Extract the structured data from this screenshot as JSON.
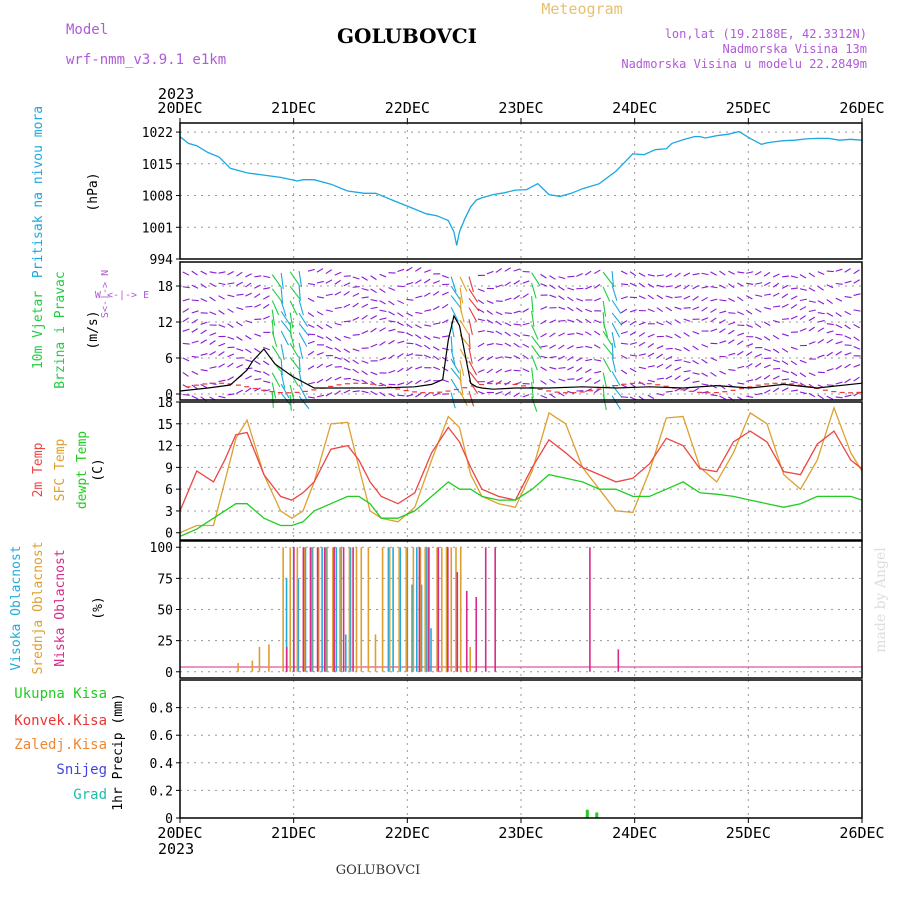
{
  "header": {
    "model_label": "Model",
    "model_name": "wrf-nmm_v3.9.1 e1km",
    "station_title": "GOLUBOVCI",
    "meteogram_label": "Meteogram",
    "lonlat": "lon,lat (19.2188E, 42.3312N)",
    "altitude": "Nadmorska Visina 13m",
    "model_altitude": "Nadmorska Visina u modelu 22.2849m"
  },
  "footer": {
    "station": "GOLUBOVCI",
    "credit": "made by Angel"
  },
  "time_axis": {
    "year": "2023",
    "labels": [
      "20DEC",
      "21DEC",
      "22DEC",
      "23DEC",
      "24DEC",
      "25DEC",
      "26DEC"
    ]
  },
  "colors": {
    "pressure": "#1ba8e0",
    "wind_main": "#8a1bd6",
    "wind_alt": "#1ba8e0",
    "wind_green": "#22cc44",
    "wind_orange": "#e0a020",
    "wind_red": "#e83a3a",
    "temp_2m": "#ee4444",
    "temp_sfc": "#dda030",
    "dewpt": "#22cc22",
    "cloud_high": "#22aadd",
    "cloud_mid": "#dda030",
    "cloud_low": "#d82a8a",
    "precip_total": "#22cc22",
    "precip_conv": "#ee3333",
    "precip_frozen": "#ee8833",
    "snow": "#4444dd",
    "hail": "#22bbaa",
    "side_label_purple": "#b05ad8",
    "credit": "#dddddd"
  },
  "chart_data": [
    {
      "type": "line",
      "panel": "pressure",
      "ylabel": [
        "Pritisak na nivou mora",
        "(hPa)"
      ],
      "ylim": [
        994,
        1024
      ],
      "yticks": [
        "994",
        "1001",
        "1008",
        "1015",
        "1022"
      ],
      "x_hours": [
        0,
        3,
        6,
        10,
        14,
        18,
        24,
        30,
        36,
        40,
        42,
        44,
        48,
        54,
        60,
        66,
        70,
        74,
        76,
        80,
        84,
        88,
        92,
        94,
        96,
        98,
        99,
        100,
        102,
        104,
        106,
        108,
        112,
        116,
        120,
        124,
        128,
        132,
        136,
        140,
        144,
        150,
        156,
        160,
        162,
        166,
        170,
        174,
        176,
        180,
        184,
        186,
        188,
        192,
        196,
        200,
        204,
        208,
        210,
        212,
        216,
        220,
        224,
        228,
        232,
        236,
        240,
        244
      ],
      "values": [
        1021,
        1019.5,
        1019,
        1017.5,
        1016.5,
        1014,
        1013,
        1012.5,
        1012,
        1011.5,
        1011.2,
        1011.5,
        1011.5,
        1010.5,
        1009,
        1008.5,
        1008.5,
        1007.5,
        1007,
        1006,
        1005,
        1004,
        1003.5,
        1003,
        1002.5,
        1000,
        997,
        1000,
        1003,
        1005.5,
        1007,
        1007.5,
        1008.2,
        1008.6,
        1009.2,
        1009.3,
        1010.6,
        1008.2,
        1007.8,
        1008.5,
        1009.5,
        1010.6,
        1013.4,
        1015.9,
        1017.2,
        1017,
        1018.1,
        1018.3,
        1019.5,
        1020.3,
        1021,
        1021,
        1020.7,
        1021.2,
        1021.5,
        1022.1,
        1020.6,
        1019.3,
        1019.6,
        1019.8,
        1020.1,
        1020.2,
        1020.5,
        1020.6,
        1020.6,
        1020.2,
        1020.4,
        1020.2
      ]
    },
    {
      "type": "line",
      "panel": "wind",
      "ylabel": [
        "10m Vjetar",
        "Brzina i Pravac",
        "(m/s)"
      ],
      "direction_legend": [
        "W <-|-> E",
        "S<-|-> N"
      ],
      "ylim": [
        -1,
        22
      ],
      "yticks": [
        "0",
        "6",
        "12",
        "18"
      ],
      "x_hours": [
        0,
        10,
        18,
        24,
        26,
        30,
        34,
        40,
        48,
        60,
        72,
        84,
        90,
        94,
        96,
        98,
        100,
        102,
        104,
        106,
        108,
        112,
        120,
        132,
        144,
        156,
        168,
        180,
        192,
        204,
        216,
        228,
        244
      ],
      "values": [
        0.5,
        1,
        1.5,
        4,
        5.5,
        7.5,
        5,
        3,
        1,
        1,
        1,
        1.2,
        1.6,
        2.4,
        9,
        13,
        11.4,
        6.6,
        1.8,
        1.2,
        1,
        0.8,
        1,
        1,
        1.2,
        1,
        1.2,
        1,
        1.4,
        1,
        1.6,
        1,
        1.8
      ]
    },
    {
      "type": "line",
      "panel": "temperature",
      "ylabel": [
        "2m Temp",
        "SFC Temp",
        "dewpt Temp",
        "(C)"
      ],
      "ylim": [
        -1,
        18
      ],
      "yticks": [
        "0",
        "3",
        "6",
        "9",
        "12",
        "15",
        "18"
      ],
      "x_hours": [
        0,
        6,
        12,
        16,
        20,
        24,
        30,
        36,
        40,
        44,
        48,
        54,
        60,
        64,
        68,
        72,
        78,
        84,
        90,
        96,
        100,
        104,
        108,
        114,
        120,
        126,
        132,
        138,
        144,
        150,
        156,
        162,
        168,
        174,
        180,
        186,
        192,
        198,
        204,
        210,
        216,
        222,
        228,
        234,
        240,
        244
      ],
      "series": [
        {
          "name": "2m Temp",
          "values": [
            3,
            8.5,
            7,
            10,
            13.5,
            13.8,
            8,
            5,
            4.5,
            5.5,
            7,
            11.5,
            12,
            10,
            7,
            5,
            4,
            5.5,
            11,
            14.5,
            12.5,
            9,
            6,
            5,
            4.5,
            9,
            12.8,
            11,
            9,
            8,
            7,
            7.5,
            9.5,
            13,
            12,
            8.8,
            8.4,
            12.5,
            14,
            12.5,
            8.4,
            8,
            12.2,
            14,
            10,
            8.8
          ]
        },
        {
          "name": "SFC Temp",
          "values": [
            0,
            1,
            1,
            7,
            13,
            15.5,
            8,
            3,
            2,
            3,
            7,
            15,
            15.2,
            9,
            3,
            2,
            1.5,
            3.5,
            10,
            16,
            14.5,
            8,
            5,
            4,
            3.5,
            8.5,
            16.5,
            15,
            9,
            6,
            3,
            2.8,
            8.5,
            15.8,
            16,
            9,
            7,
            11,
            16.5,
            15,
            8,
            6,
            10,
            17.2,
            11,
            8.5
          ]
        },
        {
          "name": "dewpt Temp",
          "values": [
            -0.5,
            0.5,
            2,
            3,
            4,
            4,
            2,
            1,
            1,
            1.5,
            3,
            4,
            5,
            5,
            4,
            2,
            2,
            3,
            5,
            7,
            6,
            6,
            5,
            4.5,
            4.5,
            6,
            8,
            7.5,
            7,
            6,
            6,
            5,
            5,
            6,
            7,
            5.5,
            5.3,
            5,
            4.5,
            4,
            3.5,
            4,
            5,
            5,
            5,
            4.5
          ]
        }
      ]
    },
    {
      "type": "bar",
      "panel": "cloud",
      "ylabel": [
        "Visoka Oblacnost",
        "Srednja Oblacnost",
        "Niska Oblacnost",
        "(%)"
      ],
      "ylim": [
        -5,
        105
      ],
      "yticks": [
        "0",
        "25",
        "50",
        "75",
        "100"
      ],
      "series": [
        {
          "name": "Visoka Oblacnost",
          "x_hours": [
            22.5,
            24,
            25,
            26.5,
            28,
            30,
            31,
            33,
            34,
            35,
            36,
            44,
            45,
            46.5,
            48,
            49,
            50,
            51,
            52,
            53
          ],
          "values": [
            75,
            100,
            75,
            100,
            100,
            100,
            100,
            100,
            100,
            30,
            100,
            100,
            100,
            100,
            100,
            70,
            100,
            70,
            100,
            35
          ]
        },
        {
          "name": "Srednja Oblacnost",
          "x_hours": [
            12,
            15,
            16.5,
            18.5,
            21.5,
            23,
            24.5,
            26,
            27.5,
            29,
            30.5,
            32,
            33.5,
            35.5,
            37,
            38,
            39.5,
            41,
            42.5,
            44,
            46,
            47.5,
            49,
            50.5,
            51.5,
            52,
            54,
            55,
            56,
            57,
            58,
            59,
            61
          ],
          "values": [
            7,
            9,
            20,
            22,
            100,
            100,
            100,
            100,
            100,
            100,
            100,
            100,
            100,
            100,
            100,
            100,
            100,
            30,
            100,
            100,
            100,
            100,
            100,
            100,
            100,
            100,
            100,
            100,
            100,
            100,
            100,
            100,
            20
          ]
        },
        {
          "name": "Niska Oblacnost",
          "x_hours": [
            22,
            23.5,
            25.5,
            27,
            28.5,
            30,
            32,
            34,
            36,
            50,
            52,
            54,
            56,
            58,
            60,
            62,
            64,
            66,
            86,
            92
          ],
          "values": [
            20,
            100,
            100,
            100,
            100,
            100,
            100,
            100,
            100,
            100,
            100,
            100,
            100,
            80,
            65,
            60,
            100,
            100,
            100,
            18
          ]
        }
      ]
    },
    {
      "type": "bar",
      "panel": "precip",
      "ylabel": [
        "1hr Precip (mm)"
      ],
      "legend": [
        "Ukupna Kisa",
        "Konvek.Kisa",
        "Zaledj.Kisa",
        "Snijeg",
        "Grad"
      ],
      "ylim": [
        0,
        1
      ],
      "yticks": [
        "0",
        "0.2",
        "0.4",
        "0.6",
        "0.8"
      ],
      "series": [
        {
          "name": "Ukupna Kisa",
          "x_hours": [
            86,
            88
          ],
          "values": [
            0.06,
            0.04
          ]
        }
      ]
    }
  ]
}
